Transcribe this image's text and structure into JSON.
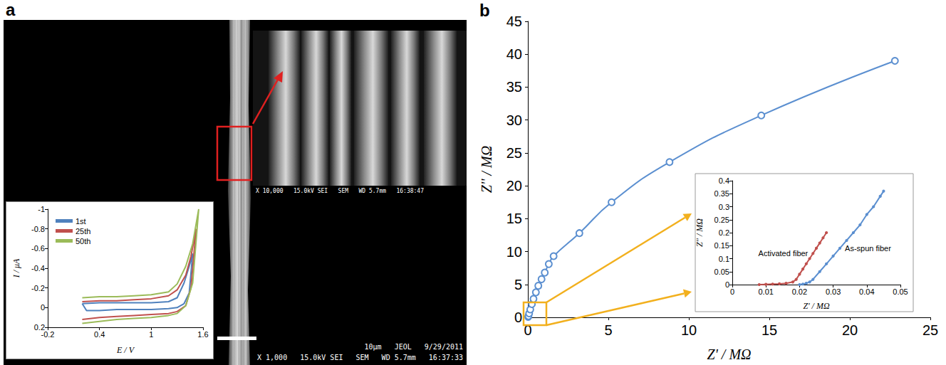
{
  "sem": {
    "panel": "a",
    "footer": [
      "10μm   JEOL   9/29/2011",
      "X 1,000   15.0kV SEI   SEM   WD 5.7mm   16:37:33"
    ],
    "zoom_footer": "X 10,000   15.0kV SEI   SEM   WD 5.7mm   16:38:47"
  },
  "chart_data": [
    {
      "type": "line",
      "x_label": "E / V",
      "y_label": "I / μA",
      "xlim": [
        -0.2,
        1.6
      ],
      "xticks": [
        -0.2,
        0.4,
        1,
        1.6
      ],
      "ylim": [
        0.2,
        -1
      ],
      "yticks": [
        -1,
        -0.8,
        -0.6,
        -0.4,
        -0.2,
        0,
        0.2
      ],
      "grid": false,
      "legend": "upper left",
      "series": [
        {
          "name": "1st",
          "color": "#4f81bd",
          "marker": "none",
          "line_style": "solid",
          "x": [
            0.2,
            0.4,
            0.6,
            0.8,
            1.0,
            1.2,
            1.3,
            1.38,
            1.44,
            1.48,
            1.44,
            1.38,
            1.3,
            1.2,
            1.0,
            0.8,
            0.6,
            0.4,
            0.25,
            0.2
          ],
          "values": [
            -0.04,
            -0.05,
            -0.05,
            -0.05,
            -0.05,
            -0.06,
            -0.1,
            -0.25,
            -0.42,
            -0.55,
            -0.15,
            -0.04,
            0.0,
            0.01,
            0.02,
            0.02,
            0.02,
            0.03,
            0.03,
            -0.04
          ]
        },
        {
          "name": "25th",
          "color": "#c0504d",
          "marker": "none",
          "line_style": "solid",
          "x": [
            0.2,
            0.4,
            0.6,
            0.8,
            1.0,
            1.2,
            1.3,
            1.4,
            1.46,
            1.52,
            1.46,
            1.4,
            1.3,
            1.2,
            1.0,
            0.8,
            0.6,
            0.4,
            0.2
          ],
          "values": [
            -0.06,
            -0.07,
            -0.07,
            -0.08,
            -0.09,
            -0.12,
            -0.18,
            -0.33,
            -0.52,
            -0.8,
            -0.2,
            -0.02,
            0.04,
            0.06,
            0.07,
            0.08,
            0.09,
            0.1,
            0.12
          ]
        },
        {
          "name": "50th",
          "color": "#9bbb59",
          "marker": "none",
          "line_style": "solid",
          "x": [
            0.2,
            0.4,
            0.6,
            0.8,
            1.0,
            1.2,
            1.3,
            1.4,
            1.48,
            1.55,
            1.48,
            1.4,
            1.3,
            1.2,
            1.0,
            0.8,
            0.6,
            0.4,
            0.2
          ],
          "values": [
            -0.1,
            -0.11,
            -0.11,
            -0.12,
            -0.13,
            -0.16,
            -0.24,
            -0.42,
            -0.65,
            -1.0,
            -0.25,
            -0.02,
            0.06,
            0.08,
            0.1,
            0.11,
            0.12,
            0.14,
            0.16
          ]
        }
      ]
    },
    {
      "type": "line",
      "panel": "b",
      "x_label": "Z' / MΩ",
      "y_label": "Z'' / MΩ",
      "xlim": [
        0,
        25
      ],
      "xticks": [
        0,
        5,
        10,
        15,
        20,
        25
      ],
      "ylim": [
        0,
        45
      ],
      "yticks": [
        0,
        5,
        10,
        15,
        20,
        25,
        30,
        35,
        40,
        45
      ],
      "grid": false,
      "series": [
        {
          "color": "#5b8fd0",
          "marker": "open_circle",
          "line_style": "smooth",
          "x": [
            0.02,
            0.04,
            0.08,
            0.15,
            0.25,
            0.35,
            0.5,
            0.65,
            0.85,
            1.05,
            1.3,
            1.6,
            3.2,
            5.2,
            8.8,
            14.5,
            22.8
          ],
          "values": [
            0.05,
            0.2,
            0.6,
            1.2,
            2.0,
            2.8,
            3.8,
            4.8,
            5.8,
            6.8,
            8.1,
            9.3,
            12.8,
            17.5,
            23.6,
            30.7,
            39
          ]
        },
        {
          "color": "#c0504d",
          "type": "scatter",
          "marker": "dot",
          "x": [
            0.008,
            0.018,
            0.022,
            0.025,
            0.028
          ],
          "values": [
            0,
            0.01,
            0.08,
            0.14,
            0.2
          ]
        }
      ]
    },
    {
      "type": "line",
      "x_label": "Z' / MΩ",
      "y_label": "Z'' / MΩ",
      "xlim": [
        0,
        0.05
      ],
      "xticks": [
        0,
        0.01,
        0.02,
        0.03,
        0.04,
        0.05
      ],
      "ylim": [
        0,
        0.4
      ],
      "yticks": [
        0,
        0.05,
        0.1,
        0.15,
        0.2,
        0.25,
        0.3,
        0.35,
        0.4
      ],
      "grid": false,
      "series": [
        {
          "name": "Activated fiber",
          "color": "#c0504d",
          "marker": "dot",
          "line_style": "solid",
          "x": [
            0.008,
            0.01,
            0.012,
            0.014,
            0.016,
            0.018,
            0.019,
            0.02,
            0.021,
            0.022,
            0.023,
            0.024,
            0.025,
            0.026,
            0.027,
            0.028
          ],
          "values": [
            0,
            0.001,
            0.002,
            0.003,
            0.005,
            0.01,
            0.02,
            0.04,
            0.06,
            0.08,
            0.1,
            0.12,
            0.14,
            0.16,
            0.18,
            0.2
          ]
        },
        {
          "name": "As-spun fiber",
          "color": "#5b8fd0",
          "marker": "dot",
          "line_style": "solid",
          "x": [
            0.02,
            0.021,
            0.022,
            0.023,
            0.024,
            0.026,
            0.028,
            0.03,
            0.032,
            0.034,
            0.036,
            0.038,
            0.04,
            0.042,
            0.044,
            0.045
          ],
          "values": [
            0,
            0.002,
            0.005,
            0.01,
            0.02,
            0.05,
            0.08,
            0.11,
            0.14,
            0.17,
            0.2,
            0.23,
            0.27,
            0.3,
            0.34,
            0.36
          ]
        }
      ]
    }
  ]
}
